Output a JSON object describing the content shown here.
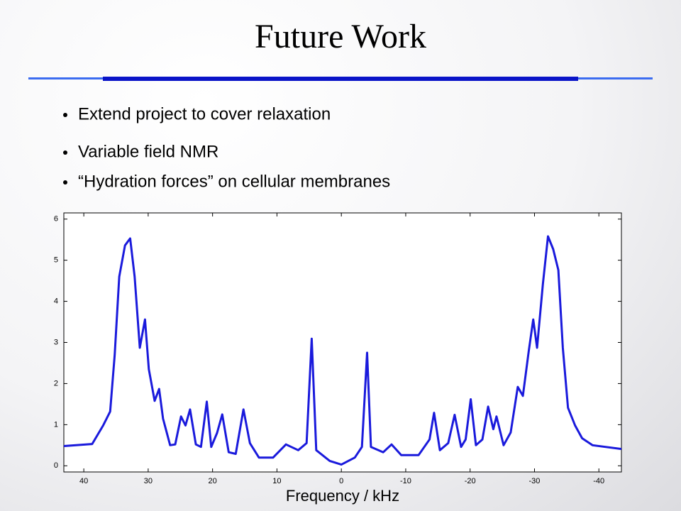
{
  "slide": {
    "title": "Future Work",
    "bullets": [
      "Extend project to cover relaxation",
      "Variable field NMR",
      "“Hydration forces” on cellular membranes"
    ]
  },
  "chart_data": {
    "type": "line",
    "xlabel": "Frequency / kHz",
    "color": "#1a1adc",
    "x": [
      43.1,
      38.7,
      37.0,
      35.9,
      35.2,
      34.5,
      33.6,
      32.8,
      32.1,
      31.3,
      30.5,
      29.9,
      29.0,
      28.3,
      27.7,
      26.6,
      25.8,
      24.9,
      24.2,
      23.5,
      22.6,
      21.8,
      20.9,
      20.2,
      19.3,
      18.5,
      17.5,
      16.4,
      15.2,
      14.2,
      12.8,
      10.6,
      8.6,
      6.7,
      5.4,
      4.6,
      3.9,
      1.8,
      0.0,
      -2.1,
      -3.2,
      -4.0,
      -4.6,
      -6.5,
      -7.8,
      -9.3,
      -12.0,
      -13.7,
      -14.4,
      -15.3,
      -16.6,
      -17.6,
      -18.6,
      -19.3,
      -20.1,
      -20.9,
      -21.9,
      -22.8,
      -23.6,
      -24.1,
      -25.2,
      -26.3,
      -27.4,
      -28.2,
      -29.1,
      -29.8,
      -30.4,
      -31.3,
      -32.1,
      -32.9,
      -33.7,
      -34.4,
      -35.2,
      -36.3,
      -37.4,
      -39.0,
      -43.5
    ],
    "values": [
      0.48,
      0.53,
      0.98,
      1.32,
      2.7,
      4.6,
      5.36,
      5.53,
      4.6,
      2.87,
      3.56,
      2.35,
      1.58,
      1.87,
      1.15,
      0.5,
      0.52,
      1.2,
      0.98,
      1.37,
      0.52,
      0.46,
      1.56,
      0.46,
      0.8,
      1.25,
      0.33,
      0.29,
      1.37,
      0.55,
      0.2,
      0.2,
      0.52,
      0.38,
      0.55,
      3.09,
      0.38,
      0.12,
      0.03,
      0.2,
      0.46,
      2.75,
      0.46,
      0.33,
      0.52,
      0.26,
      0.26,
      0.64,
      1.29,
      0.38,
      0.55,
      1.24,
      0.46,
      0.64,
      1.62,
      0.5,
      0.64,
      1.44,
      0.89,
      1.2,
      0.5,
      0.81,
      1.92,
      1.7,
      2.78,
      3.56,
      2.87,
      4.42,
      5.58,
      5.27,
      4.76,
      2.87,
      1.41,
      0.98,
      0.67,
      0.5,
      0.41
    ],
    "xlim": [
      43.1,
      -43.5
    ],
    "ylim": [
      -0.15,
      6.15
    ],
    "xticks": [
      40,
      30,
      20,
      10,
      0,
      -10,
      -20,
      -30,
      -40
    ],
    "yticks": [
      0,
      1,
      2,
      3,
      4,
      5,
      6
    ]
  }
}
